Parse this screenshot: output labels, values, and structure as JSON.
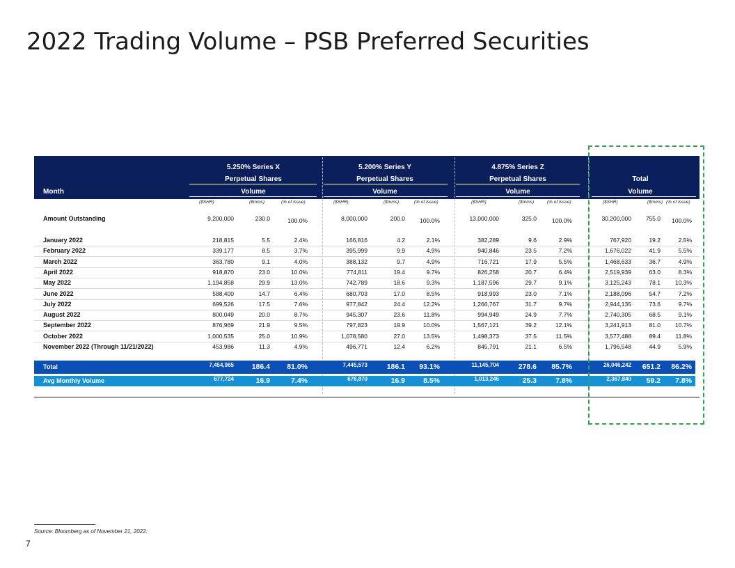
{
  "title": "2022 Trading Volume – PSB Preferred Securities",
  "header": {
    "month_label": "Month",
    "series": [
      {
        "name": "5.250% Series X",
        "sub": "Perpetual Shares",
        "vol": "Volume"
      },
      {
        "name": "5.200% Series Y",
        "sub": "Perpetual Shares",
        "vol": "Volume"
      },
      {
        "name": "4.875% Series Z",
        "sub": "Perpetual Shares",
        "vol": "Volume"
      },
      {
        "name": "",
        "sub": "Total",
        "vol": "Volume"
      }
    ],
    "units": [
      "($SHR)",
      "($mms)",
      "(% of Issue)"
    ]
  },
  "amount_outstanding": {
    "label": "Amount Outstanding",
    "values": [
      [
        "9,200,000",
        "230.0",
        "100.0%"
      ],
      [
        "8,000,000",
        "200.0",
        "100.0%"
      ],
      [
        "13,000,000",
        "325.0",
        "100.0%"
      ],
      [
        "30,200,000",
        "755.0",
        "100.0%"
      ]
    ]
  },
  "rows": [
    {
      "month": "January 2022",
      "values": [
        [
          "218,815",
          "5.5",
          "2.4%"
        ],
        [
          "166,816",
          "4.2",
          "2.1%"
        ],
        [
          "382,289",
          "9.6",
          "2.9%"
        ],
        [
          "767,920",
          "19.2",
          "2.5%"
        ]
      ]
    },
    {
      "month": "February 2022",
      "values": [
        [
          "339,177",
          "8.5",
          "3.7%"
        ],
        [
          "395,999",
          "9.9",
          "4.9%"
        ],
        [
          "940,846",
          "23.5",
          "7.2%"
        ],
        [
          "1,676,022",
          "41.9",
          "5.5%"
        ]
      ]
    },
    {
      "month": "March 2022",
      "values": [
        [
          "363,780",
          "9.1",
          "4.0%"
        ],
        [
          "388,132",
          "9.7",
          "4.9%"
        ],
        [
          "716,721",
          "17.9",
          "5.5%"
        ],
        [
          "1,468,633",
          "36.7",
          "4.9%"
        ]
      ]
    },
    {
      "month": "April 2022",
      "values": [
        [
          "918,870",
          "23.0",
          "10.0%"
        ],
        [
          "774,811",
          "19.4",
          "9.7%"
        ],
        [
          "826,258",
          "20.7",
          "6.4%"
        ],
        [
          "2,519,939",
          "63.0",
          "8.3%"
        ]
      ]
    },
    {
      "month": "May 2022",
      "values": [
        [
          "1,194,858",
          "29.9",
          "13.0%"
        ],
        [
          "742,789",
          "18.6",
          "9.3%"
        ],
        [
          "1,187,596",
          "29.7",
          "9.1%"
        ],
        [
          "3,125,243",
          "78.1",
          "10.3%"
        ]
      ]
    },
    {
      "month": "June 2022",
      "values": [
        [
          "588,400",
          "14.7",
          "6.4%"
        ],
        [
          "680,703",
          "17.0",
          "8.5%"
        ],
        [
          "918,993",
          "23.0",
          "7.1%"
        ],
        [
          "2,188,096",
          "54.7",
          "7.2%"
        ]
      ]
    },
    {
      "month": "July 2022",
      "values": [
        [
          "699,526",
          "17.5",
          "7.6%"
        ],
        [
          "977,842",
          "24.4",
          "12.2%"
        ],
        [
          "1,266,767",
          "31.7",
          "9.7%"
        ],
        [
          "2,944,135",
          "73.6",
          "9.7%"
        ]
      ]
    },
    {
      "month": "August 2022",
      "values": [
        [
          "800,049",
          "20.0",
          "8.7%"
        ],
        [
          "945,307",
          "23.6",
          "11.8%"
        ],
        [
          "994,949",
          "24.9",
          "7.7%"
        ],
        [
          "2,740,305",
          "68.5",
          "9.1%"
        ]
      ]
    },
    {
      "month": "September 2022",
      "values": [
        [
          "876,969",
          "21.9",
          "9.5%"
        ],
        [
          "797,823",
          "19.9",
          "10.0%"
        ],
        [
          "1,567,121",
          "39.2",
          "12.1%"
        ],
        [
          "3,241,913",
          "81.0",
          "10.7%"
        ]
      ]
    },
    {
      "month": "October 2022",
      "values": [
        [
          "1,000,535",
          "25.0",
          "10.9%"
        ],
        [
          "1,078,580",
          "27.0",
          "13.5%"
        ],
        [
          "1,498,373",
          "37.5",
          "11.5%"
        ],
        [
          "3,577,488",
          "89.4",
          "11.8%"
        ]
      ]
    },
    {
      "month": "November 2022 (Through 11/21/2022)",
      "values": [
        [
          "453,986",
          "11.3",
          "4.9%"
        ],
        [
          "496,771",
          "12.4",
          "6.2%"
        ],
        [
          "845,791",
          "21.1",
          "6.5%"
        ],
        [
          "1,796,548",
          "44.9",
          "5.9%"
        ]
      ]
    }
  ],
  "total": {
    "label": "Total",
    "values": [
      [
        "7,454,965",
        "186.4",
        "81.0%"
      ],
      [
        "7,445,573",
        "186.1",
        "93.1%"
      ],
      [
        "11,145,704",
        "278.6",
        "85.7%"
      ],
      [
        "26,046,242",
        "651.2",
        "86.2%"
      ]
    ]
  },
  "avg": {
    "label": "Avg Monthly Volume",
    "values": [
      [
        "677,724",
        "16.9",
        "7.4%"
      ],
      [
        "676,870",
        "16.9",
        "8.5%"
      ],
      [
        "1,013,246",
        "25.3",
        "7.8%"
      ],
      [
        "2,367,840",
        "59.2",
        "7.8%"
      ]
    ]
  },
  "source": "Source: Bloomberg as of November 21, 2022.",
  "page_number": "7"
}
